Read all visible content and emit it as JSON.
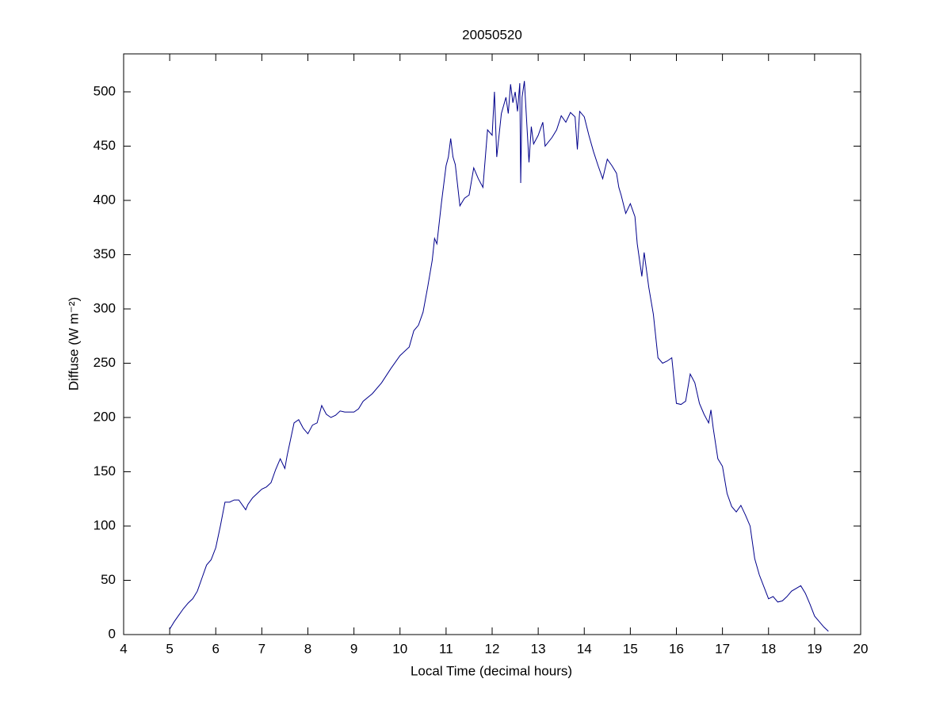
{
  "chart_data": {
    "type": "line",
    "title": "20050520",
    "xlabel": "Local Time (decimal hours)",
    "ylabel": "Diffuse (W m⁻²)",
    "x": [
      5.0,
      5.1,
      5.2,
      5.3,
      5.4,
      5.5,
      5.6,
      5.7,
      5.8,
      5.9,
      6.0,
      6.1,
      6.2,
      6.3,
      6.4,
      6.5,
      6.6,
      6.65,
      6.7,
      6.8,
      6.9,
      7.0,
      7.1,
      7.2,
      7.3,
      7.4,
      7.5,
      7.55,
      7.6,
      7.7,
      7.8,
      7.9,
      8.0,
      8.1,
      8.2,
      8.3,
      8.4,
      8.5,
      8.6,
      8.7,
      8.8,
      8.9,
      9.0,
      9.1,
      9.2,
      9.4,
      9.6,
      9.8,
      10.0,
      10.2,
      10.3,
      10.4,
      10.5,
      10.6,
      10.7,
      10.75,
      10.8,
      10.9,
      11.0,
      11.05,
      11.1,
      11.15,
      11.2,
      11.3,
      11.4,
      11.5,
      11.6,
      11.7,
      11.8,
      11.9,
      12.0,
      12.05,
      12.1,
      12.2,
      12.3,
      12.35,
      12.4,
      12.45,
      12.5,
      12.55,
      12.6,
      12.62,
      12.65,
      12.7,
      12.8,
      12.85,
      12.9,
      13.0,
      13.1,
      13.15,
      13.3,
      13.4,
      13.5,
      13.6,
      13.7,
      13.8,
      13.85,
      13.9,
      14.0,
      14.1,
      14.2,
      14.3,
      14.4,
      14.5,
      14.6,
      14.7,
      14.75,
      14.8,
      14.9,
      15.0,
      15.1,
      15.15,
      15.25,
      15.3,
      15.4,
      15.5,
      15.6,
      15.7,
      15.8,
      15.9,
      16.0,
      16.1,
      16.2,
      16.3,
      16.4,
      16.5,
      16.6,
      16.7,
      16.75,
      16.8,
      16.9,
      17.0,
      17.1,
      17.2,
      17.3,
      17.4,
      17.5,
      17.6,
      17.7,
      17.8,
      17.9,
      18.0,
      18.1,
      18.2,
      18.3,
      18.4,
      18.5,
      18.7,
      18.8,
      18.9,
      19.0,
      19.1,
      19.2,
      19.3
    ],
    "series": [
      {
        "color": "#00008b",
        "values": [
          5,
          12,
          18,
          24,
          29,
          33,
          40,
          52,
          64,
          69,
          80,
          100,
          122,
          122,
          124,
          124,
          118,
          115,
          120,
          126,
          130,
          134,
          136,
          140,
          152,
          162,
          153,
          165,
          175,
          195,
          198,
          190,
          185,
          193,
          195,
          211,
          203,
          200,
          202,
          206,
          205,
          205,
          205,
          208,
          215,
          222,
          232,
          245,
          257,
          265,
          280,
          285,
          297,
          320,
          345,
          365,
          360,
          398,
          432,
          440,
          457,
          440,
          433,
          395,
          402,
          405,
          430,
          420,
          412,
          465,
          460,
          500,
          440,
          480,
          495,
          480,
          507,
          490,
          500,
          482,
          508,
          416,
          495,
          510,
          435,
          468,
          452,
          460,
          472,
          450,
          458,
          465,
          478,
          472,
          481,
          477,
          447,
          482,
          477,
          460,
          445,
          432,
          420,
          438,
          432,
          425,
          412,
          405,
          388,
          397,
          385,
          360,
          330,
          352,
          320,
          295,
          255,
          250,
          252,
          255,
          213,
          212,
          215,
          240,
          232,
          213,
          203,
          195,
          207,
          190,
          162,
          155,
          130,
          118,
          113,
          119,
          110,
          100,
          70,
          55,
          44,
          33,
          35,
          30,
          31,
          35,
          40,
          45,
          38,
          28,
          17,
          12,
          7,
          3
        ]
      }
    ],
    "xlim": [
      4,
      20
    ],
    "xticks": [
      4,
      5,
      6,
      7,
      8,
      9,
      10,
      11,
      12,
      13,
      14,
      15,
      16,
      17,
      18,
      19,
      20
    ],
    "ylim": [
      0,
      535
    ],
    "yticks": [
      0,
      50,
      100,
      150,
      200,
      250,
      300,
      350,
      400,
      450,
      500
    ]
  }
}
